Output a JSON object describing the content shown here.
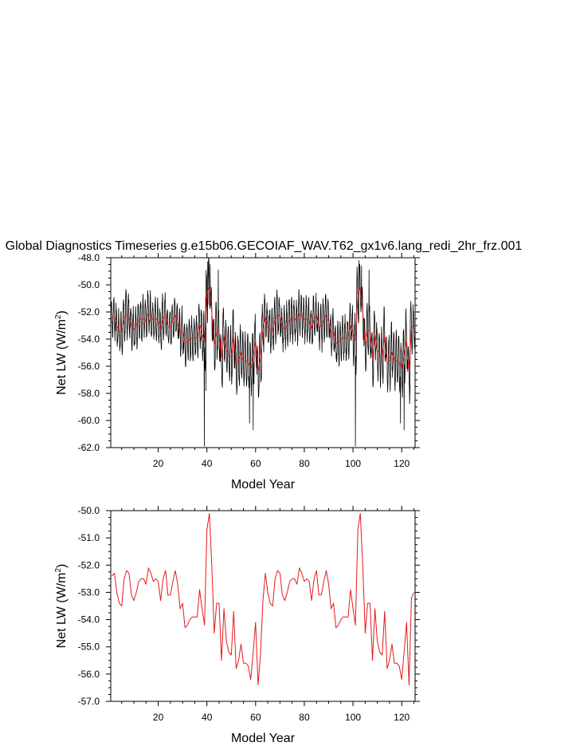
{
  "title": "Global Diagnostics Timeseries g.e15b06.GECOIAF_WAV.T62_gx1v6.lang_redi_2hr_frz.001",
  "colors": {
    "monthly": "#000000",
    "annual": "#e41a1c",
    "axis": "#000000",
    "background": "#ffffff"
  },
  "chart_data": [
    {
      "type": "line",
      "xlabel": "Model Year",
      "ylabel": "Net LW (W/m",
      "ylabel_superscript": "2",
      "ylabel_suffix": ")",
      "xlim": [
        0.5,
        125.5
      ],
      "ylim": [
        -62.0,
        -48.0
      ],
      "xticks": [
        20,
        40,
        60,
        80,
        100,
        120
      ],
      "xtick_labels": [
        "20",
        "40",
        "60",
        "80",
        "100",
        "120"
      ],
      "yticks": [
        -48,
        -50,
        -52,
        -54,
        -56,
        -58,
        -60,
        -62
      ],
      "ytick_labels": [
        "-48.0",
        "-50.0",
        "-52.0",
        "-54.0",
        "-56.0",
        "-58.0",
        "-60.0",
        "-62.0"
      ],
      "series": [
        {
          "key": "monthly",
          "color": "#000000",
          "resolution": "monthly",
          "values": []
        },
        {
          "key": "annual",
          "color": "#e41a1c",
          "resolution": "annual",
          "values": []
        }
      ]
    },
    {
      "type": "line",
      "xlabel": "Model Year",
      "ylabel": "Net LW (W/m",
      "ylabel_superscript": "2",
      "ylabel_suffix": ")",
      "xlim": [
        0.5,
        125.5
      ],
      "ylim": [
        -57.0,
        -50.0
      ],
      "xticks": [
        20,
        40,
        60,
        80,
        100,
        120
      ],
      "xtick_labels": [
        "20",
        "40",
        "60",
        "80",
        "100",
        "120"
      ],
      "yticks": [
        -50,
        -51,
        -52,
        -53,
        -54,
        -55,
        -56,
        -57
      ],
      "ytick_labels": [
        "-50.0",
        "-51.0",
        "-52.0",
        "-53.0",
        "-54.0",
        "-55.0",
        "-56.0",
        "-57.0"
      ],
      "series": [
        {
          "key": "annual",
          "color": "#e41a1c",
          "resolution": "annual",
          "values": []
        }
      ]
    }
  ]
}
